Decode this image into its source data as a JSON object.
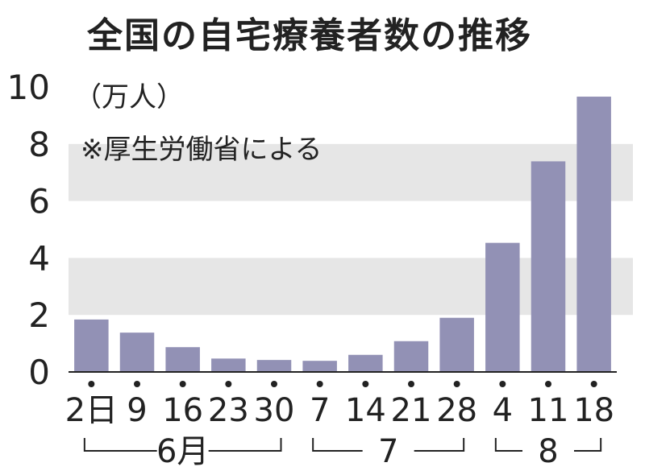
{
  "chart_data": {
    "type": "bar",
    "title": "全国の自宅療養者数の推移",
    "unit_label": "（万人）",
    "source_note": "※厚生労働省による",
    "ylim": [
      0,
      10
    ],
    "yticks": [
      "0",
      "2",
      "4",
      "6",
      "8",
      "10"
    ],
    "grid_bands": true,
    "categories": [
      "2日",
      "9",
      "16",
      "23",
      "30",
      "7",
      "14",
      "21",
      "28",
      "4",
      "11",
      "18"
    ],
    "values": [
      1.84,
      1.38,
      0.87,
      0.47,
      0.42,
      0.39,
      0.6,
      1.08,
      1.9,
      4.53,
      7.39,
      9.66
    ],
    "month_groups": [
      {
        "label": "6月",
        "start": 0,
        "end": 4
      },
      {
        "label": "7",
        "start": 5,
        "end": 8
      },
      {
        "label": "8",
        "start": 9,
        "end": 11
      }
    ],
    "colors": {
      "bar": "#9291b5",
      "band": "#e6e6e6",
      "text": "#222222"
    }
  }
}
